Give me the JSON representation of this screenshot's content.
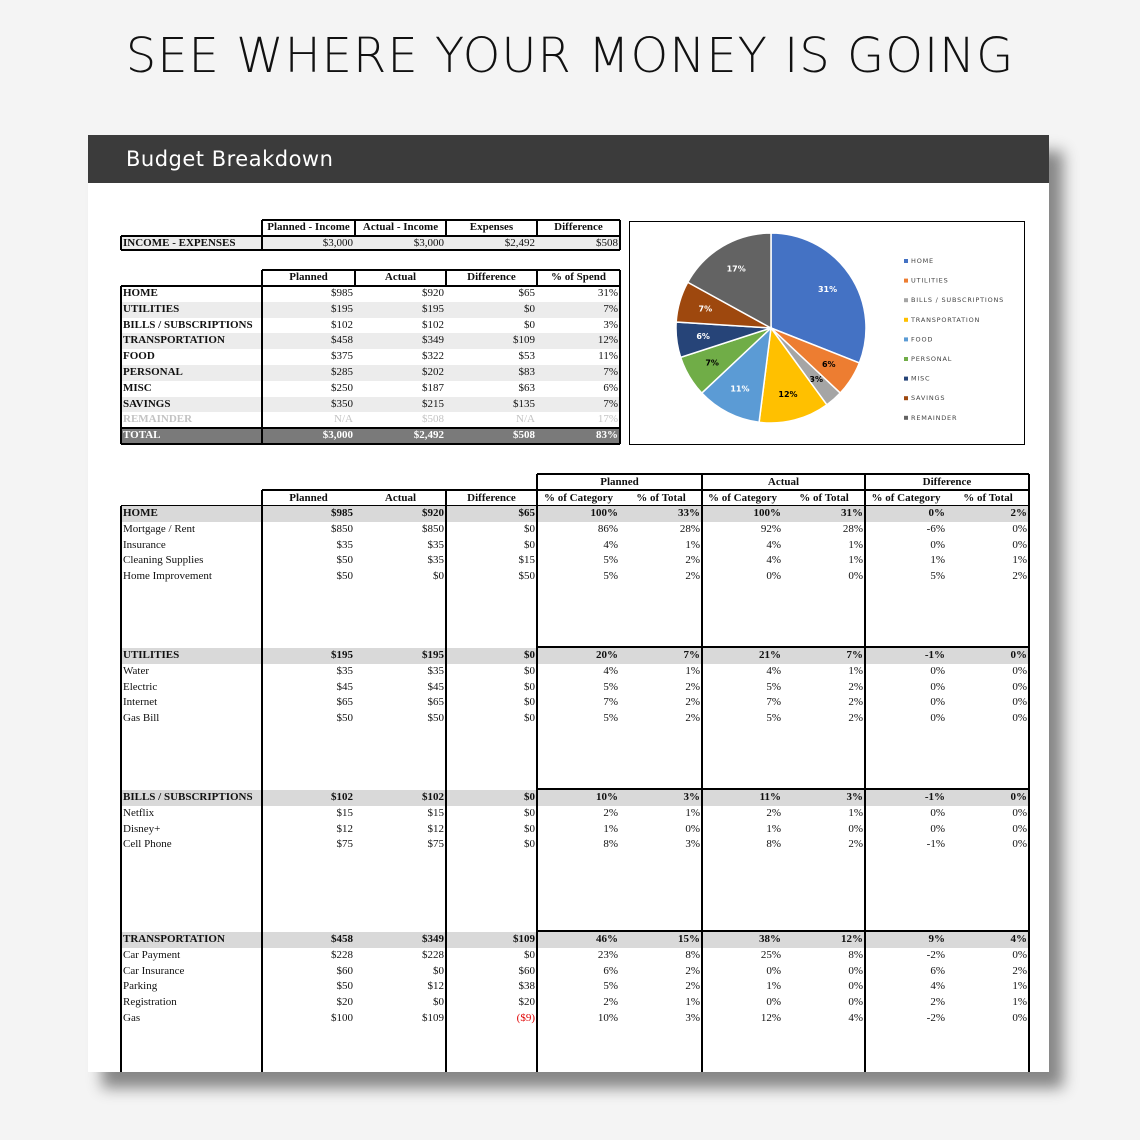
{
  "header": {
    "title": "SEE WHERE YOUR MONEY IS GOING",
    "sheet_title": "Budget Breakdown"
  },
  "income_table": {
    "columns": [
      "Planned - Income",
      "Actual - Income",
      "Expenses",
      "Difference"
    ],
    "row": [
      "INCOME - EXPENSES",
      "$3,000",
      "$3,000",
      "$2,492",
      "$508"
    ]
  },
  "summary_table": {
    "columns": [
      "Planned",
      "Actual",
      "Difference",
      "% of Spend"
    ],
    "rows": [
      [
        "HOME",
        "$985",
        "$920",
        "$65",
        "31%"
      ],
      [
        "UTILITIES",
        "$195",
        "$195",
        "$0",
        "7%"
      ],
      [
        "BILLS / SUBSCRIPTIONS",
        "$102",
        "$102",
        "$0",
        "3%"
      ],
      [
        "TRANSPORTATION",
        "$458",
        "$349",
        "$109",
        "12%"
      ],
      [
        "FOOD",
        "$375",
        "$322",
        "$53",
        "11%"
      ],
      [
        "PERSONAL",
        "$285",
        "$202",
        "$83",
        "7%"
      ],
      [
        "MISC",
        "$250",
        "$187",
        "$63",
        "6%"
      ],
      [
        "SAVINGS",
        "$350",
        "$215",
        "$135",
        "7%"
      ],
      [
        "REMAINDER",
        "N/A",
        "$508",
        "N/A",
        "17%"
      ]
    ],
    "total": [
      "TOTAL",
      "$3,000",
      "$2,492",
      "$508",
      "83%"
    ]
  },
  "chart_data": {
    "type": "pie",
    "categories": [
      "HOME",
      "UTILITIES",
      "BILLS / SUBSCRIPTIONS",
      "TRANSPORTATION",
      "FOOD",
      "PERSONAL",
      "MISC",
      "SAVINGS",
      "REMAINDER"
    ],
    "values": [
      31,
      6,
      3,
      12,
      11,
      7,
      6,
      7,
      17
    ],
    "value_labels": [
      "31%",
      "6%",
      "3%",
      "12%",
      "11%",
      "7%",
      "6%",
      "7%",
      "17%"
    ],
    "colors": [
      "#4472c4",
      "#ed7d31",
      "#a5a5a5",
      "#ffc000",
      "#5b9bd5",
      "#70ad47",
      "#264478",
      "#9e480e",
      "#636363"
    ],
    "legend": "right"
  },
  "detail_table": {
    "group_headers": [
      "Planned",
      "Actual",
      "Difference"
    ],
    "columns": [
      "Planned",
      "Actual",
      "Difference",
      "% of Category",
      "% of Total",
      "% of Category",
      "% of Total",
      "% of Category",
      "% of Total"
    ],
    "sections": [
      {
        "rows": [
          [
            "HOME",
            "$985",
            "$920",
            "$65",
            "100%",
            "33%",
            "100%",
            "31%",
            "0%",
            "2%"
          ],
          [
            "Mortgage / Rent",
            "$850",
            "$850",
            "$0",
            "86%",
            "28%",
            "92%",
            "28%",
            "-6%",
            "0%"
          ],
          [
            "Insurance",
            "$35",
            "$35",
            "$0",
            "4%",
            "1%",
            "4%",
            "1%",
            "0%",
            "0%"
          ],
          [
            "Cleaning Supplies",
            "$50",
            "$35",
            "$15",
            "5%",
            "2%",
            "4%",
            "1%",
            "1%",
            "1%"
          ],
          [
            "Home Improvement",
            "$50",
            "$0",
            "$50",
            "5%",
            "2%",
            "0%",
            "0%",
            "5%",
            "2%"
          ]
        ]
      },
      {
        "rows": [
          [
            "UTILITIES",
            "$195",
            "$195",
            "$0",
            "20%",
            "7%",
            "21%",
            "7%",
            "-1%",
            "0%"
          ],
          [
            "Water",
            "$35",
            "$35",
            "$0",
            "4%",
            "1%",
            "4%",
            "1%",
            "0%",
            "0%"
          ],
          [
            "Electric",
            "$45",
            "$45",
            "$0",
            "5%",
            "2%",
            "5%",
            "2%",
            "0%",
            "0%"
          ],
          [
            "Internet",
            "$65",
            "$65",
            "$0",
            "7%",
            "2%",
            "7%",
            "2%",
            "0%",
            "0%"
          ],
          [
            "Gas Bill",
            "$50",
            "$50",
            "$0",
            "5%",
            "2%",
            "5%",
            "2%",
            "0%",
            "0%"
          ]
        ]
      },
      {
        "rows": [
          [
            "BILLS / SUBSCRIPTIONS",
            "$102",
            "$102",
            "$0",
            "10%",
            "3%",
            "11%",
            "3%",
            "-1%",
            "0%"
          ],
          [
            "Netflix",
            "$15",
            "$15",
            "$0",
            "2%",
            "1%",
            "2%",
            "1%",
            "0%",
            "0%"
          ],
          [
            "Disney+",
            "$12",
            "$12",
            "$0",
            "1%",
            "0%",
            "1%",
            "0%",
            "0%",
            "0%"
          ],
          [
            "Cell Phone",
            "$75",
            "$75",
            "$0",
            "8%",
            "3%",
            "8%",
            "2%",
            "-1%",
            "0%"
          ]
        ]
      },
      {
        "rows": [
          [
            "TRANSPORTATION",
            "$458",
            "$349",
            "$109",
            "46%",
            "15%",
            "38%",
            "12%",
            "9%",
            "4%"
          ],
          [
            "Car Payment",
            "$228",
            "$228",
            "$0",
            "23%",
            "8%",
            "25%",
            "8%",
            "-2%",
            "0%"
          ],
          [
            "Car Insurance",
            "$60",
            "$0",
            "$60",
            "6%",
            "2%",
            "0%",
            "0%",
            "6%",
            "2%"
          ],
          [
            "Parking",
            "$50",
            "$12",
            "$38",
            "5%",
            "2%",
            "1%",
            "0%",
            "4%",
            "1%"
          ],
          [
            "Registration",
            "$20",
            "$0",
            "$20",
            "2%",
            "1%",
            "0%",
            "0%",
            "2%",
            "1%"
          ],
          [
            "Gas",
            "$100",
            "$109",
            "($9)",
            "10%",
            "3%",
            "12%",
            "4%",
            "-2%",
            "0%"
          ]
        ]
      }
    ]
  }
}
